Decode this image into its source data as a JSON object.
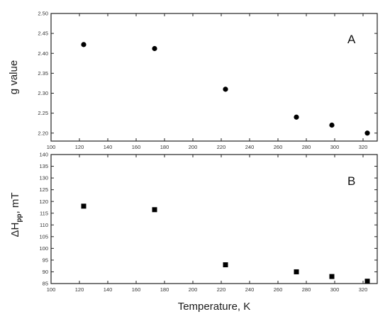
{
  "chart_data": [
    {
      "type": "scatter",
      "panel_label": "A",
      "ylabel": "g value",
      "xlabel": "",
      "xlim": [
        100,
        330
      ],
      "ylim": [
        2.18,
        2.5
      ],
      "x_ticks": [
        "100",
        "120",
        "140",
        "160",
        "180",
        "200",
        "220",
        "240",
        "260",
        "280",
        "300",
        "320"
      ],
      "y_ticks": [
        "2.20",
        "2.25",
        "2.30",
        "2.35",
        "2.40",
        "2.45",
        "2.50"
      ],
      "marker": "circle",
      "series": [
        {
          "points": [
            {
              "x": 123,
              "y": 2.422
            },
            {
              "x": 173,
              "y": 2.412
            },
            {
              "x": 223,
              "y": 2.31
            },
            {
              "x": 273,
              "y": 2.24
            },
            {
              "x": 298,
              "y": 2.22
            },
            {
              "x": 323,
              "y": 2.2
            }
          ]
        }
      ]
    },
    {
      "type": "scatter",
      "panel_label": "B",
      "ylabel_main": "ΔH",
      "ylabel_sub": "pp",
      "ylabel_rest": ", mT",
      "xlabel": "Temperature, K",
      "xlim": [
        100,
        330
      ],
      "ylim": [
        85,
        140
      ],
      "x_ticks": [
        "100",
        "120",
        "140",
        "160",
        "180",
        "200",
        "220",
        "240",
        "260",
        "280",
        "300",
        "320"
      ],
      "y_ticks": [
        "85",
        "90",
        "95",
        "100",
        "105",
        "110",
        "115",
        "120",
        "125",
        "130",
        "135",
        "140"
      ],
      "marker": "square",
      "series": [
        {
          "points": [
            {
              "x": 123,
              "y": 118
            },
            {
              "x": 173,
              "y": 116.5
            },
            {
              "x": 223,
              "y": 93
            },
            {
              "x": 273,
              "y": 90
            },
            {
              "x": 298,
              "y": 88
            },
            {
              "x": 323,
              "y": 86
            }
          ]
        }
      ]
    }
  ],
  "colors": {
    "marker": "#000000",
    "axis": "#222222",
    "text": "#333333"
  }
}
